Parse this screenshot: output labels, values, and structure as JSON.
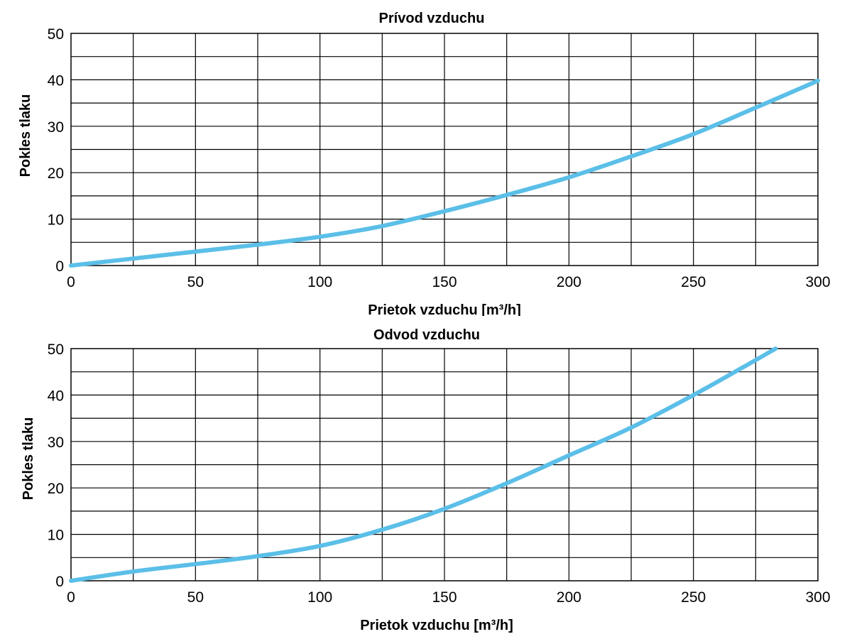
{
  "chart_data": [
    {
      "type": "line",
      "title": "Prívod vzduchu",
      "xlabel": "Prietok vzduchu [m³/h]",
      "ylabel": "Pokles tlaku",
      "xlim": [
        0,
        300
      ],
      "ylim": [
        0,
        50
      ],
      "x_ticks": [
        0,
        50,
        100,
        150,
        200,
        250,
        300
      ],
      "y_ticks": [
        0,
        10,
        20,
        30,
        40,
        50
      ],
      "grid": true,
      "x_grid_step": 25,
      "y_grid_step": 5,
      "line_color": "#5bbfe8",
      "series": [
        {
          "x": [
            0,
            25,
            50,
            75,
            100,
            125,
            150,
            175,
            200,
            225,
            250,
            275,
            300
          ],
          "y": [
            0,
            1.5,
            3,
            4.5,
            6.2,
            8.5,
            11.7,
            15.2,
            19,
            23.5,
            28.3,
            34,
            39.8
          ]
        }
      ]
    },
    {
      "type": "line",
      "title": "Odvod vzduchu",
      "xlabel": "Prietok vzduchu [m³/h]",
      "ylabel": "Pokles tlaku",
      "xlim": [
        0,
        300
      ],
      "ylim": [
        0,
        50
      ],
      "x_ticks": [
        0,
        50,
        100,
        150,
        200,
        250,
        300
      ],
      "y_ticks": [
        0,
        10,
        20,
        30,
        40,
        50
      ],
      "grid": true,
      "x_grid_step": 25,
      "y_grid_step": 5,
      "line_color": "#5bbfe8",
      "series": [
        {
          "x": [
            0,
            25,
            50,
            75,
            100,
            125,
            150,
            175,
            200,
            225,
            250,
            270,
            283
          ],
          "y": [
            0,
            2,
            3.6,
            5.3,
            7.5,
            11,
            15.5,
            21,
            27,
            33,
            40,
            46,
            50
          ]
        }
      ]
    }
  ]
}
